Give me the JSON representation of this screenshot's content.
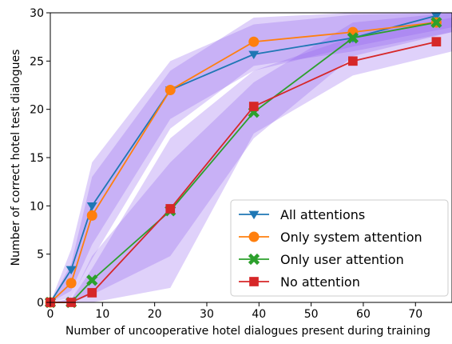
{
  "chart_data": {
    "type": "line",
    "xlabel": "Number of uncooperative hotel dialogues present during training",
    "ylabel": "Number of correct hotel test dialogues",
    "xlim": [
      0,
      77
    ],
    "ylim": [
      0,
      30
    ],
    "xticks": [
      0,
      10,
      20,
      30,
      40,
      50,
      60,
      70
    ],
    "yticks": [
      0,
      5,
      10,
      15,
      20,
      25,
      30
    ],
    "legend_position": "lower-right",
    "grid": false,
    "series": [
      {
        "name": "All attentions",
        "marker": "triangle-down",
        "color": "#1f77b4",
        "x": [
          0,
          4,
          8,
          23,
          39,
          58,
          74
        ],
        "y": [
          0,
          3.4,
          10.0,
          22.0,
          25.7,
          27.4,
          29.7
        ]
      },
      {
        "name": "Only system attention",
        "marker": "circle",
        "color": "#ff7f0e",
        "x": [
          0,
          4,
          8,
          23,
          39,
          58,
          74
        ],
        "y": [
          0,
          2.0,
          9.0,
          22.0,
          27.0,
          28.0,
          29.0
        ]
      },
      {
        "name": "Only user attention",
        "marker": "x",
        "color": "#2ca02c",
        "x": [
          0,
          4,
          8,
          23,
          39,
          58,
          74
        ],
        "y": [
          0,
          0,
          2.3,
          9.5,
          19.7,
          27.4,
          29.0
        ]
      },
      {
        "name": "No attention",
        "marker": "square",
        "color": "#d62728",
        "x": [
          0,
          4,
          8,
          23,
          39,
          58,
          74
        ],
        "y": [
          0,
          0,
          1.0,
          9.7,
          20.3,
          25.0,
          27.0
        ]
      }
    ],
    "bands": [
      {
        "color": "#9467ee",
        "x": [
          0,
          4,
          8,
          23,
          39,
          58,
          77
        ],
        "lower": [
          0,
          1.2,
          6.0,
          19.0,
          24.0,
          26.5,
          28.5
        ],
        "upper": [
          0,
          5.5,
          14.5,
          25.0,
          28.8,
          29.8,
          30.0
        ]
      },
      {
        "color": "#9467ee",
        "x": [
          0,
          4,
          8,
          23,
          39,
          58,
          77
        ],
        "lower": [
          0,
          0.5,
          4.5,
          18.0,
          24.5,
          26.0,
          28.0
        ],
        "upper": [
          0,
          4.0,
          13.0,
          24.0,
          29.5,
          30.0,
          30.0
        ]
      },
      {
        "color": "#9467ee",
        "x": [
          0,
          4,
          8,
          23,
          39,
          58,
          77
        ],
        "lower": [
          0,
          0,
          0.8,
          4.8,
          17.0,
          25.5,
          28.0
        ],
        "upper": [
          0,
          0.4,
          4.8,
          14.5,
          22.8,
          29.0,
          30.0
        ]
      },
      {
        "color": "#9467ee",
        "x": [
          0,
          4,
          8,
          23,
          39,
          58,
          77
        ],
        "lower": [
          0,
          0,
          0,
          1.5,
          17.5,
          23.5,
          26.0
        ],
        "upper": [
          0,
          0.3,
          3.5,
          17.0,
          24.0,
          27.5,
          29.5
        ]
      }
    ]
  }
}
